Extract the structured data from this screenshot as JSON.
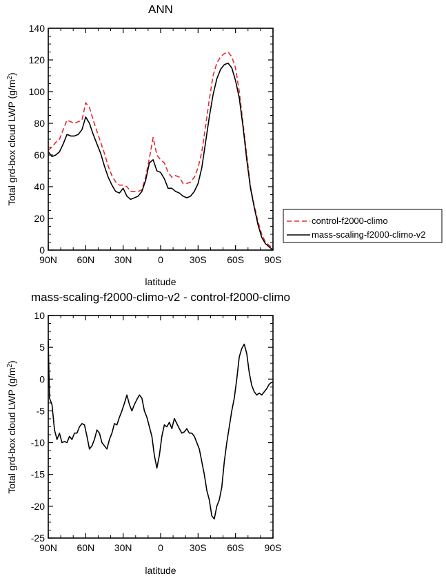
{
  "chart_data": [
    {
      "type": "line",
      "title": "ANN",
      "xlabel": "latitude",
      "ylabel": "Total grd-box cloud LWP (g/m",
      "ylabel_sup": "2",
      "ylabel_end": ")",
      "xlim": [
        -90,
        90
      ],
      "ylim": [
        0,
        140
      ],
      "xticks": [
        -90,
        -60,
        -30,
        0,
        30,
        60,
        90
      ],
      "xtick_labels": [
        "90N",
        "60N",
        "30N",
        "0",
        "30S",
        "60S",
        "90S"
      ],
      "yticks": [
        0,
        20,
        40,
        60,
        80,
        100,
        120,
        140
      ],
      "ytick_labels": [
        "0",
        "20",
        "40",
        "60",
        "80",
        "100",
        "120",
        "140"
      ],
      "legend_position": "right",
      "series": [
        {
          "name": "control-f2000-climo",
          "color": "#e8262d",
          "dash": true,
          "x": [
            -90,
            -87,
            -84,
            -81,
            -78,
            -75,
            -72,
            -69,
            -66,
            -63,
            -60,
            -57,
            -54,
            -51,
            -48,
            -45,
            -42,
            -39,
            -36,
            -33,
            -30,
            -27,
            -24,
            -21,
            -18,
            -15,
            -12,
            -9,
            -6,
            -3,
            0,
            3,
            6,
            9,
            12,
            15,
            18,
            21,
            24,
            27,
            30,
            33,
            36,
            39,
            42,
            45,
            48,
            51,
            54,
            57,
            60,
            63,
            66,
            69,
            72,
            75,
            78,
            81,
            84,
            87,
            90
          ],
          "y": [
            63,
            65,
            68,
            70,
            76,
            82,
            81,
            80,
            81,
            82,
            93,
            90,
            82,
            75,
            68,
            61,
            53,
            47,
            43,
            41,
            41,
            40,
            37,
            37,
            37,
            38,
            46,
            58,
            71,
            60,
            57,
            55,
            49,
            46,
            47,
            46,
            42,
            42,
            43,
            46,
            52,
            62,
            78,
            95,
            110,
            118,
            122,
            124,
            125,
            122,
            115,
            100,
            80,
            60,
            40,
            28,
            18,
            10,
            5,
            3,
            1
          ]
        },
        {
          "name": "mass-scaling-f2000-climo-v2",
          "color": "#000000",
          "dash": false,
          "x": [
            -90,
            -87,
            -84,
            -81,
            -78,
            -75,
            -72,
            -69,
            -66,
            -63,
            -60,
            -57,
            -54,
            -51,
            -48,
            -45,
            -42,
            -39,
            -36,
            -33,
            -30,
            -27,
            -24,
            -21,
            -18,
            -15,
            -12,
            -9,
            -6,
            -3,
            0,
            3,
            6,
            9,
            12,
            15,
            18,
            21,
            24,
            27,
            30,
            33,
            36,
            39,
            42,
            45,
            48,
            51,
            54,
            57,
            60,
            63,
            66,
            69,
            72,
            75,
            78,
            81,
            84,
            87,
            90
          ],
          "y": [
            62,
            59,
            60,
            62,
            67,
            73,
            72,
            72,
            73,
            76,
            84,
            80,
            73,
            67,
            61,
            53,
            46,
            41,
            37,
            36,
            39,
            34,
            32,
            33,
            34,
            37,
            44,
            55,
            57,
            50,
            49,
            45,
            39,
            39,
            37,
            36,
            34,
            33,
            34,
            37,
            42,
            52,
            68,
            84,
            98,
            108,
            114,
            117,
            118,
            115,
            107,
            96,
            78,
            57,
            39,
            27,
            16,
            8,
            4,
            2,
            0
          ]
        }
      ]
    },
    {
      "type": "line",
      "title": "mass-scaling-f2000-climo-v2 - control-f2000-climo",
      "xlabel": "latitude",
      "ylabel": "Total grd-box cloud LWP (g/m",
      "ylabel_sup": "2",
      "ylabel_end": ")",
      "xlim": [
        -90,
        90
      ],
      "ylim": [
        -25,
        10
      ],
      "xticks": [
        -90,
        -60,
        -30,
        0,
        30,
        60,
        90
      ],
      "xtick_labels": [
        "90N",
        "60N",
        "30N",
        "0",
        "30S",
        "60S",
        "90S"
      ],
      "yticks": [
        -25,
        -20,
        -15,
        -10,
        -5,
        0,
        5,
        10
      ],
      "ytick_labels": [
        "-25",
        "-20",
        "-15",
        "-10",
        "-5",
        "0",
        "5",
        "10"
      ],
      "series": [
        {
          "name": "",
          "color": "#000000",
          "dash": false,
          "x": [
            -90,
            -89,
            -87,
            -85,
            -83,
            -81,
            -79,
            -77,
            -75,
            -73,
            -71,
            -69,
            -67,
            -65,
            -63,
            -61,
            -59,
            -57,
            -55,
            -53,
            -51,
            -49,
            -47,
            -45,
            -43,
            -41,
            -39,
            -37,
            -35,
            -33,
            -31,
            -29,
            -27,
            -25,
            -23,
            -21,
            -19,
            -17,
            -15,
            -13,
            -11,
            -9,
            -7,
            -5,
            -3,
            -1,
            1,
            3,
            5,
            7,
            9,
            11,
            13,
            15,
            17,
            19,
            21,
            23,
            25,
            27,
            29,
            31,
            33,
            35,
            37,
            39,
            41,
            43,
            45,
            47,
            49,
            51,
            53,
            55,
            57,
            59,
            61,
            63,
            65,
            67,
            69,
            71,
            73,
            75,
            77,
            79,
            81,
            83,
            85,
            87,
            89,
            90
          ],
          "y": [
            6,
            -3,
            -4,
            -8,
            -9.5,
            -8.5,
            -10,
            -9.8,
            -10,
            -9,
            -9.5,
            -8.5,
            -8.5,
            -7.5,
            -7,
            -7.2,
            -9,
            -11,
            -10.5,
            -9.5,
            -8,
            -8.5,
            -10,
            -10.5,
            -11,
            -9.5,
            -8.5,
            -7,
            -7.2,
            -6,
            -5,
            -3.8,
            -2.5,
            -4,
            -5,
            -4,
            -3.2,
            -2.5,
            -3,
            -5,
            -6,
            -7.5,
            -9,
            -12,
            -14,
            -12,
            -9,
            -7.2,
            -7.5,
            -6.8,
            -7.8,
            -6.2,
            -7,
            -7.8,
            -8.5,
            -8.3,
            -7.8,
            -8.5,
            -8.5,
            -9,
            -10,
            -11,
            -13,
            -15,
            -17.5,
            -19,
            -21.5,
            -22,
            -20,
            -19,
            -17,
            -13,
            -10,
            -7.5,
            -5,
            -3,
            0,
            3.5,
            4.8,
            5.5,
            4,
            1,
            -1,
            -2,
            -2.5,
            -2.2,
            -2.5,
            -2,
            -1.5,
            -0.8,
            -0.5,
            -0.5
          ]
        }
      ]
    }
  ]
}
